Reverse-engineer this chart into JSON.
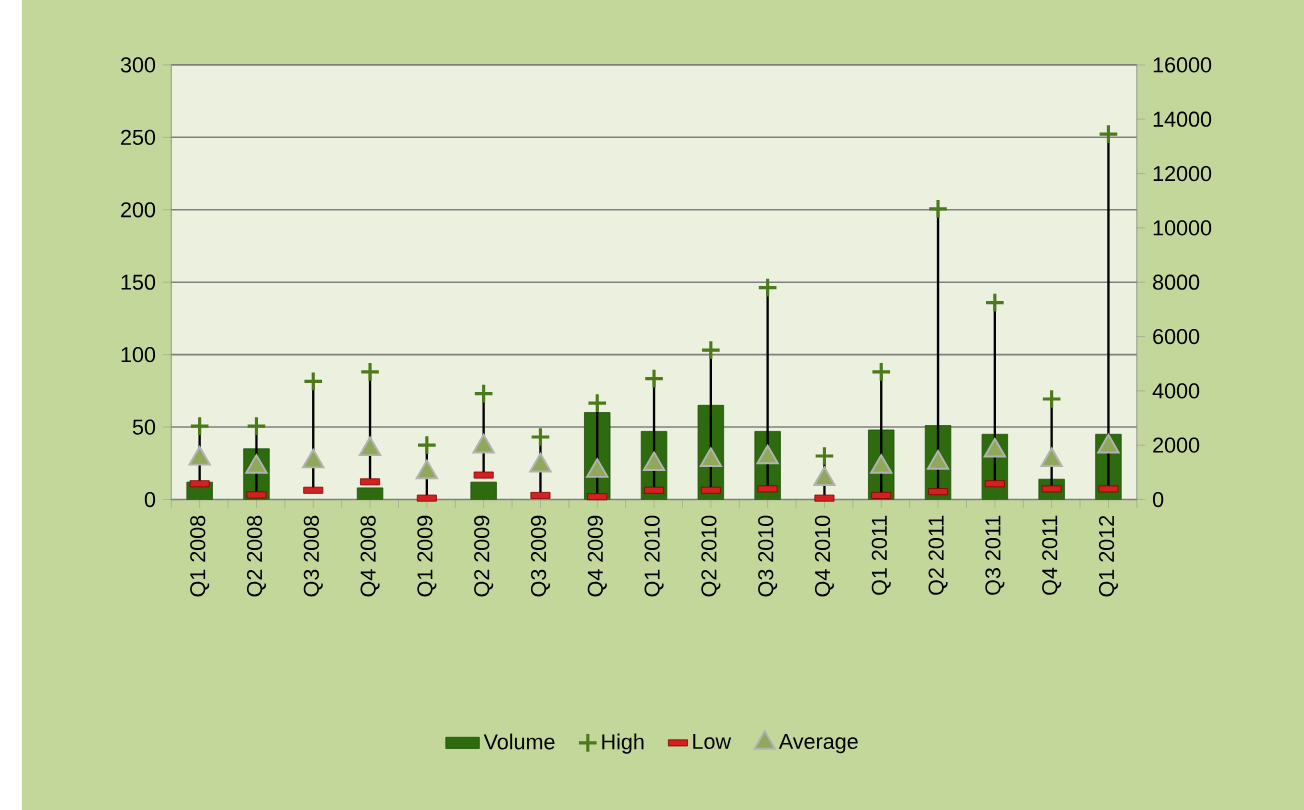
{
  "chart_data": {
    "type": "bar",
    "categories": [
      "Q1 2008",
      "Q2 2008",
      "Q3 2008",
      "Q4 2008",
      "Q1 2009",
      "Q2 2009",
      "Q3 2009",
      "Q4 2009",
      "Q1 2010",
      "Q2 2010",
      "Q3 2010",
      "Q4 2010",
      "Q1 2011",
      "Q2 2011",
      "Q3 2011",
      "Q4 2011",
      "Q1 2012"
    ],
    "series": [
      {
        "name": "Volume",
        "color": "#2e6b0e",
        "values": [
          12,
          35,
          null,
          8,
          null,
          12,
          null,
          60,
          47,
          65,
          47,
          null,
          48,
          51,
          45,
          14,
          45
        ]
      },
      {
        "name": "High",
        "type": "scatter",
        "axis": "y2",
        "marker": "cross",
        "color": "#4a7a1a",
        "values": [
          2700,
          2700,
          4350,
          4700,
          2000,
          3900,
          2300,
          3550,
          4450,
          5500,
          7800,
          1600,
          4700,
          10700,
          7250,
          3700,
          13450
        ]
      },
      {
        "name": "Low",
        "type": "scatter",
        "axis": "y2",
        "marker": "square",
        "color": "#d42020",
        "values": [
          580,
          170,
          340,
          650,
          50,
          900,
          150,
          100,
          340,
          340,
          390,
          50,
          150,
          290,
          580,
          390,
          390
        ]
      },
      {
        "name": "Average",
        "type": "scatter",
        "axis": "y2",
        "marker": "triangle",
        "color": "#8fa85a",
        "values": [
          1500,
          1200,
          1400,
          1850,
          1000,
          1950,
          1250,
          1050,
          1300,
          1450,
          1550,
          750,
          1200,
          1350,
          1800,
          1450,
          1950
        ]
      }
    ],
    "ylim": [
      0,
      300
    ],
    "yticks": [
      0,
      50,
      100,
      150,
      200,
      250,
      300
    ],
    "y2lim": [
      0,
      16000
    ],
    "y2ticks": [
      0,
      2000,
      4000,
      6000,
      8000,
      10000,
      12000,
      14000,
      16000
    ],
    "grid": "y",
    "legend": "bottom"
  }
}
